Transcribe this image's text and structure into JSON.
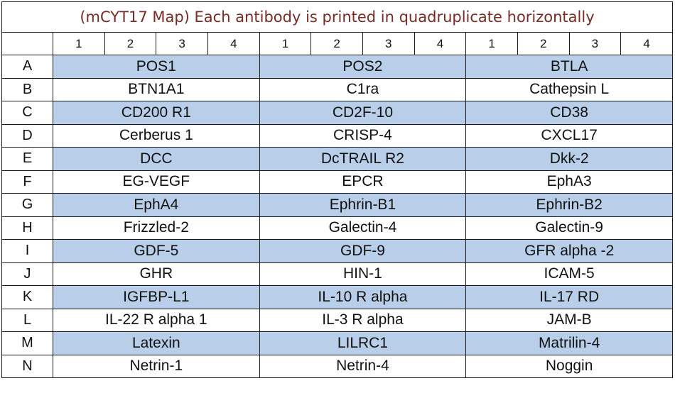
{
  "title": "(mCYT17 Map) Each antibody is printed in quadruplicate horizontally",
  "column_headers": [
    "1",
    "2",
    "3",
    "4",
    "1",
    "2",
    "3",
    "4",
    "1",
    "2",
    "3",
    "4"
  ],
  "rows": [
    {
      "label": "A",
      "cells": [
        "POS1",
        "POS2",
        "BTLA"
      ],
      "shaded": true
    },
    {
      "label": "B",
      "cells": [
        "BTN1A1",
        "C1ra",
        "Cathepsin L"
      ],
      "shaded": false
    },
    {
      "label": "C",
      "cells": [
        "CD200 R1",
        "CD2F-10",
        "CD38"
      ],
      "shaded": true
    },
    {
      "label": "D",
      "cells": [
        "Cerberus 1",
        "CRISP-4",
        "CXCL17"
      ],
      "shaded": false
    },
    {
      "label": "E",
      "cells": [
        "DCC",
        "DcTRAIL R2",
        "Dkk-2"
      ],
      "shaded": true
    },
    {
      "label": "F",
      "cells": [
        "EG-VEGF",
        "EPCR",
        "EphA3"
      ],
      "shaded": false
    },
    {
      "label": "G",
      "cells": [
        "EphA4",
        "Ephrin-B1",
        "Ephrin-B2"
      ],
      "shaded": true
    },
    {
      "label": "H",
      "cells": [
        "Frizzled-2",
        "Galectin-4",
        "Galectin-9"
      ],
      "shaded": false
    },
    {
      "label": "I",
      "cells": [
        "GDF-5",
        "GDF-9",
        "GFR alpha -2"
      ],
      "shaded": true
    },
    {
      "label": "J",
      "cells": [
        "GHR",
        "HIN-1",
        "ICAM-5"
      ],
      "shaded": false
    },
    {
      "label": "K",
      "cells": [
        "IGFBP-L1",
        "IL-10 R alpha",
        "IL-17 RD"
      ],
      "shaded": true
    },
    {
      "label": "L",
      "cells": [
        "IL-22 R alpha 1",
        "IL-3 R alpha",
        "JAM-B"
      ],
      "shaded": false
    },
    {
      "label": "M",
      "cells": [
        "Latexin",
        "LILRC1",
        "Matrilin-4"
      ],
      "shaded": true
    },
    {
      "label": "N",
      "cells": [
        "Netrin-1",
        "Netrin-4",
        "Noggin"
      ],
      "shaded": false
    }
  ],
  "colors": {
    "shade": "#b9cfe9",
    "title": "#7b2a24",
    "border": "#1a1a1a"
  }
}
